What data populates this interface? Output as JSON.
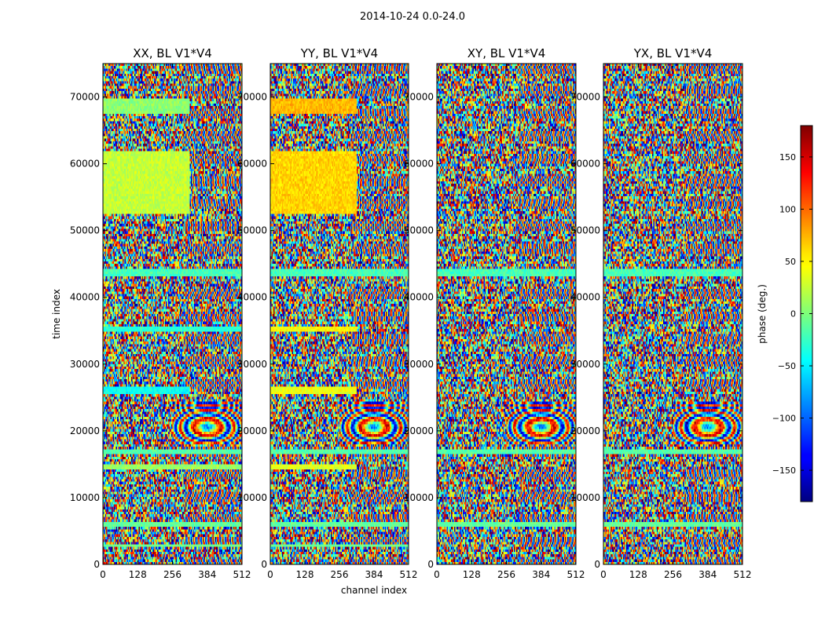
{
  "suptitle": "2014-10-24 0.0-24.0",
  "panels": [
    {
      "title": "XX, BL V1*V4"
    },
    {
      "title": "YY, BL V1*V4"
    },
    {
      "title": "XY, BL V1*V4"
    },
    {
      "title": "YX, BL V1*V4"
    }
  ],
  "xlabel": "channel index",
  "ylabel": "time index",
  "x_ticks": [
    "0",
    "128",
    "256",
    "384",
    "512"
  ],
  "y_ticks": [
    "0",
    "10000",
    "20000",
    "30000",
    "40000",
    "50000",
    "60000",
    "70000"
  ],
  "colorbar": {
    "label": "phase (deg.)",
    "ticks": [
      "150",
      "100",
      "50",
      "0",
      "−50",
      "−100",
      "−150"
    ],
    "colormap": "jet"
  },
  "chart_data": {
    "type": "heatmap",
    "title": "2014-10-24 0.0-24.0",
    "colormap": "jet",
    "xlabel": "channel index",
    "ylabel": "time index",
    "xlim": [
      0,
      512
    ],
    "ylim": [
      0,
      75000
    ],
    "x_ticks": [
      0,
      128,
      256,
      384,
      512
    ],
    "y_ticks": [
      0,
      10000,
      20000,
      30000,
      40000,
      50000,
      60000,
      70000
    ],
    "color_range": [
      -180,
      180
    ],
    "colorbar_label": "phase (deg.)",
    "colorbar_ticks": [
      150,
      100,
      50,
      0,
      -50,
      -100,
      -150
    ],
    "panels": [
      {
        "title": "XX, BL V1*V4",
        "coherent_bands": [
          {
            "t": [
              52500,
              62000
            ],
            "ch": [
              0,
              320
            ],
            "phase": 25
          },
          {
            "t": [
              67500,
              69800
            ],
            "ch": [
              0,
              320
            ],
            "phase": 5
          },
          {
            "t": [
              25500,
              26500
            ],
            "ch": [
              0,
              320
            ],
            "phase": -40
          },
          {
            "t": [
              35000,
              35800
            ],
            "ch": [
              0,
              512
            ],
            "phase": -30
          },
          {
            "t": [
              43200,
              44200
            ],
            "ch": [
              0,
              512
            ],
            "phase": -20
          },
          {
            "t": [
              16500,
              17200
            ],
            "ch": [
              0,
              512
            ],
            "phase": -15
          },
          {
            "t": [
              14200,
              14900
            ],
            "ch": [
              0,
              512
            ],
            "phase": 10
          },
          {
            "t": [
              5500,
              6300
            ],
            "ch": [
              0,
              512
            ],
            "phase": -10
          },
          {
            "t": [
              2500,
              3000
            ],
            "ch": [
              0,
              512
            ],
            "phase": -5
          }
        ],
        "fringe_region": {
          "t": [
            18000,
            24500
          ],
          "ch": [
            256,
            512
          ]
        }
      },
      {
        "title": "YY, BL V1*V4",
        "coherent_bands": [
          {
            "t": [
              52500,
              62000
            ],
            "ch": [
              0,
              320
            ],
            "phase": 60
          },
          {
            "t": [
              67500,
              69800
            ],
            "ch": [
              0,
              320
            ],
            "phase": 70
          },
          {
            "t": [
              25500,
              26500
            ],
            "ch": [
              0,
              320
            ],
            "phase": 40
          },
          {
            "t": [
              35000,
              35800
            ],
            "ch": [
              0,
              320
            ],
            "phase": 45
          },
          {
            "t": [
              43200,
              44200
            ],
            "ch": [
              0,
              512
            ],
            "phase": -20
          },
          {
            "t": [
              16500,
              17200
            ],
            "ch": [
              0,
              512
            ],
            "phase": -15
          },
          {
            "t": [
              14200,
              14900
            ],
            "ch": [
              0,
              320
            ],
            "phase": 35
          },
          {
            "t": [
              5500,
              6300
            ],
            "ch": [
              0,
              512
            ],
            "phase": -10
          },
          {
            "t": [
              2500,
              3000
            ],
            "ch": [
              0,
              512
            ],
            "phase": -5
          }
        ],
        "fringe_region": {
          "t": [
            18000,
            24500
          ],
          "ch": [
            256,
            512
          ]
        }
      },
      {
        "title": "XY, BL V1*V4",
        "coherent_bands": [
          {
            "t": [
              43200,
              44200
            ],
            "ch": [
              0,
              512
            ],
            "phase": -20
          },
          {
            "t": [
              16500,
              17200
            ],
            "ch": [
              0,
              512
            ],
            "phase": -15
          },
          {
            "t": [
              5500,
              6300
            ],
            "ch": [
              0,
              512
            ],
            "phase": -10
          }
        ],
        "fringe_region": {
          "t": [
            18000,
            24500
          ],
          "ch": [
            256,
            512
          ]
        }
      },
      {
        "title": "YX, BL V1*V4",
        "coherent_bands": [
          {
            "t": [
              43200,
              44200
            ],
            "ch": [
              0,
              512
            ],
            "phase": -20
          },
          {
            "t": [
              16500,
              17200
            ],
            "ch": [
              0,
              512
            ],
            "phase": -15
          },
          {
            "t": [
              5500,
              6300
            ],
            "ch": [
              0,
              512
            ],
            "phase": -10
          }
        ],
        "fringe_region": {
          "t": [
            18000,
            24500
          ],
          "ch": [
            256,
            512
          ]
        }
      }
    ]
  }
}
